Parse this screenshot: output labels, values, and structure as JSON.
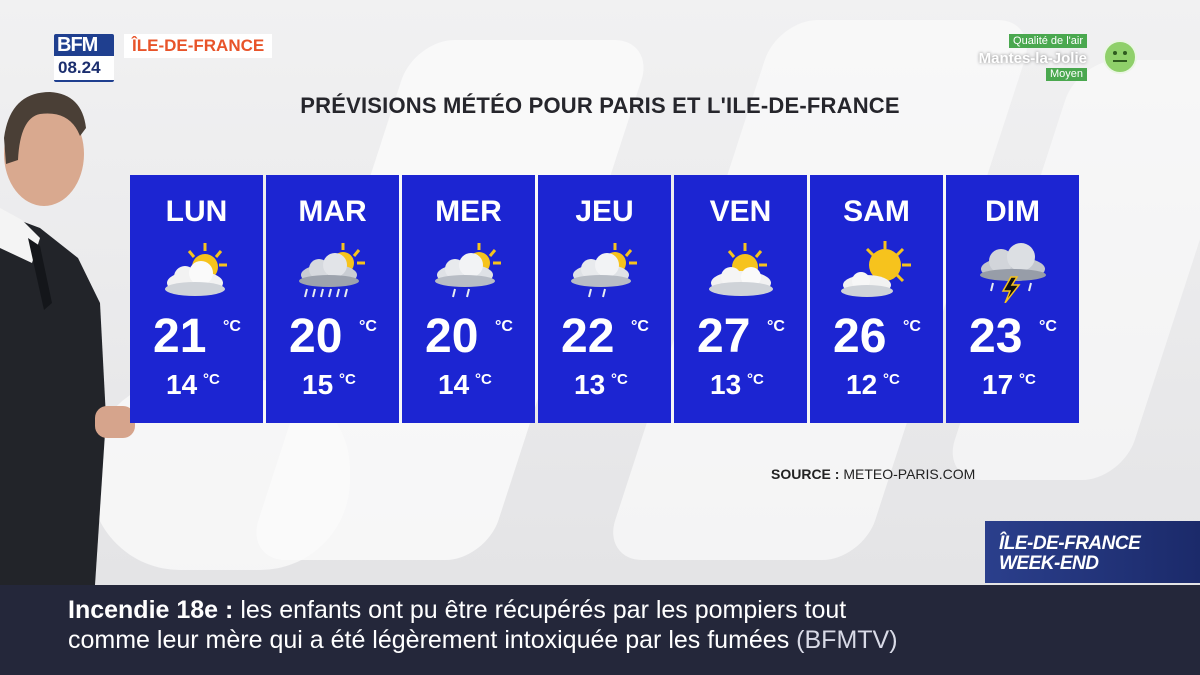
{
  "header": {
    "channel_logo": "BFM",
    "clock": "08.24",
    "region": "ÎLE-DE-FRANCE"
  },
  "air_quality": {
    "title": "Qualité de l'air",
    "city": "Mantes-la-Jolie",
    "level": "Moyen",
    "icon": "smiley-neutral-icon",
    "color": "#4aa84f"
  },
  "forecast": {
    "title": "PRÉVISIONS MÉTÉO POUR PARIS ET L'ILE-DE-FRANCE",
    "unit": "°C",
    "panel_color": "#1c25d2",
    "days": [
      {
        "name": "LUN",
        "max": "21",
        "min": "14",
        "icon": "sun-behind-cloud-icon"
      },
      {
        "name": "MAR",
        "max": "20",
        "min": "15",
        "icon": "sun-cloud-rain-icon"
      },
      {
        "name": "MER",
        "max": "20",
        "min": "14",
        "icon": "sun-cloud-light-rain-icon"
      },
      {
        "name": "JEU",
        "max": "22",
        "min": "13",
        "icon": "sun-cloud-light-rain-icon"
      },
      {
        "name": "VEN",
        "max": "27",
        "min": "13",
        "icon": "sun-behind-cloud-icon"
      },
      {
        "name": "SAM",
        "max": "26",
        "min": "12",
        "icon": "sun-small-cloud-icon"
      },
      {
        "name": "DIM",
        "max": "23",
        "min": "17",
        "icon": "thunderstorm-cloud-icon"
      }
    ],
    "source_label": "SOURCE :",
    "source_value": "METEO-PARIS.COM"
  },
  "show_tag": {
    "line1": "ÎLE-DE-FRANCE",
    "line2": "WEEK-END"
  },
  "ticker": {
    "kicker": "Incendie 18e :",
    "line1_text": "les enfants ont pu être récupérés par les pompiers tout",
    "line2_text": "comme leur mère qui a été légèrement intoxiquée par les fumées",
    "credit": "(BFMTV)"
  }
}
